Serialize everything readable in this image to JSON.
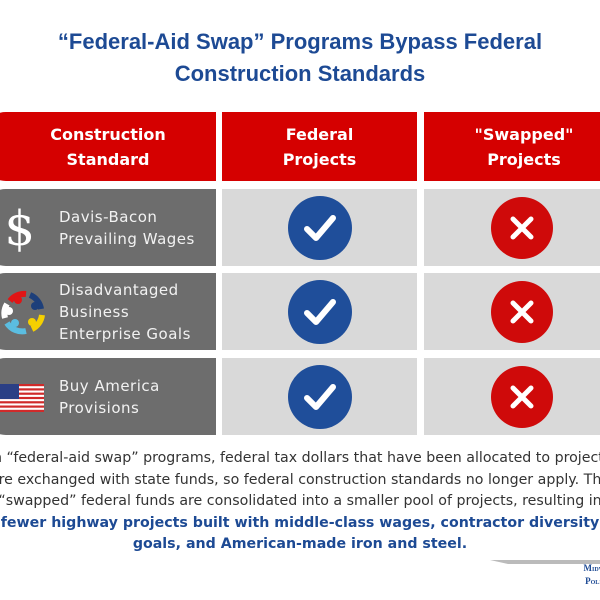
{
  "title": {
    "line1": "“Federal-Aid Swap” Programs Bypass Federal",
    "line2": "Construction Standards"
  },
  "table": {
    "headers": [
      "Construction Standard",
      "Federal Projects",
      "\"Swapped\" Projects"
    ],
    "header_lines": [
      [
        "Construction",
        "Standard"
      ],
      [
        "Federal",
        "Projects"
      ],
      [
        "\"Swapped\"",
        "Projects"
      ]
    ],
    "rows": [
      {
        "icon": "dollar-sign-icon",
        "lines": [
          "Davis-Bacon",
          "Prevailing Wages"
        ],
        "federal": "check",
        "swapped": "x"
      },
      {
        "icon": "people-circle-icon",
        "lines": [
          "Disadvantaged",
          "Business",
          "Enterprise Goals"
        ],
        "federal": "check",
        "swapped": "x"
      },
      {
        "icon": "us-flag-icon",
        "lines": [
          "Buy America",
          "Provisions"
        ],
        "federal": "check",
        "swapped": "x"
      }
    ]
  },
  "body": {
    "plain": "In “federal-aid swap” programs, federal tax dollars that have been allocated to projects are exchanged with state funds, so federal construction standards no longer apply. The “swapped” federal funds are consolidated into a smaller pool of projects, resulting in ",
    "highlight": "fewer highway projects built with middle-class wages, contractor diversity goals, and American-made iron and steel."
  },
  "logo": {
    "line1": "Midwest",
    "line2": "Policy I"
  },
  "colors": {
    "title": "#1d4a94",
    "header": "#d50000",
    "standard_cell": "#6d6d6d",
    "value_cell": "#d9d9d9",
    "check": "#1f4e9a",
    "x": "#cf0a0a"
  }
}
